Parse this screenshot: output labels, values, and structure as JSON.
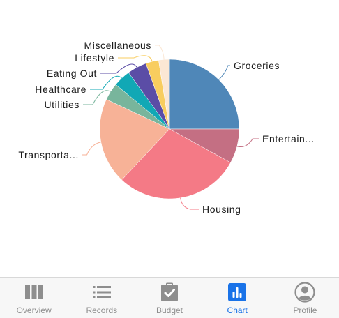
{
  "chart_data": {
    "type": "pie",
    "slices": [
      {
        "label": "Groceries",
        "value": 25.0,
        "color": "#4f87b8"
      },
      {
        "label": "Entertain...",
        "value": 8.0,
        "color": "#c46f83"
      },
      {
        "label": "Housing",
        "value": 29.0,
        "color": "#f47a86"
      },
      {
        "label": "Transporta...",
        "value": 20.0,
        "color": "#f7b297"
      },
      {
        "label": "Utilities",
        "value": 4.0,
        "color": "#78b59c"
      },
      {
        "label": "Healthcare",
        "value": 4.0,
        "color": "#11a8b5"
      },
      {
        "label": "Eating Out",
        "value": 4.5,
        "color": "#5b4da6"
      },
      {
        "label": "Lifestyle",
        "value": 3.0,
        "color": "#f8cd5f"
      },
      {
        "label": "Miscellaneous",
        "value": 2.5,
        "color": "#fbe7d4"
      }
    ]
  },
  "tabbar": {
    "active": "Chart",
    "accent_color": "#1a73e8",
    "items": [
      {
        "label": "Overview",
        "icon": "columns-icon"
      },
      {
        "label": "Records",
        "icon": "list-icon"
      },
      {
        "label": "Budget",
        "icon": "clipboard-check-icon"
      },
      {
        "label": "Chart",
        "icon": "bar-chart-icon"
      },
      {
        "label": "Profile",
        "icon": "user-circle-icon"
      }
    ]
  }
}
